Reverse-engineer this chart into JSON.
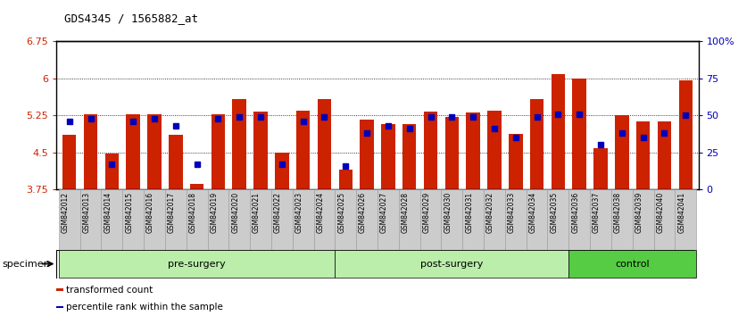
{
  "title": "GDS4345 / 1565882_at",
  "samples": [
    "GSM842012",
    "GSM842013",
    "GSM842014",
    "GSM842015",
    "GSM842016",
    "GSM842017",
    "GSM842018",
    "GSM842019",
    "GSM842020",
    "GSM842021",
    "GSM842022",
    "GSM842023",
    "GSM842024",
    "GSM842025",
    "GSM842026",
    "GSM842027",
    "GSM842028",
    "GSM842029",
    "GSM842030",
    "GSM842031",
    "GSM842032",
    "GSM842033",
    "GSM842034",
    "GSM842035",
    "GSM842036",
    "GSM842037",
    "GSM842038",
    "GSM842039",
    "GSM842040",
    "GSM842041"
  ],
  "red_values": [
    4.85,
    5.28,
    4.47,
    5.28,
    5.28,
    4.85,
    3.87,
    5.28,
    5.57,
    5.32,
    4.5,
    5.35,
    5.57,
    4.15,
    5.17,
    5.08,
    5.08,
    5.32,
    5.22,
    5.3,
    5.35,
    4.87,
    5.58,
    6.08,
    6.0,
    4.58,
    5.25,
    5.12,
    5.12,
    5.95
  ],
  "blue_pct": [
    46,
    48,
    17,
    46,
    48,
    43,
    17,
    48,
    49,
    49,
    17,
    46,
    49,
    16,
    38,
    43,
    41,
    49,
    49,
    49,
    41,
    35,
    49,
    51,
    51,
    30,
    38,
    35,
    38,
    50
  ],
  "ylim_left": [
    3.75,
    6.75
  ],
  "ylim_right": [
    0,
    100
  ],
  "yticks_left": [
    3.75,
    4.5,
    5.25,
    6.0,
    6.75
  ],
  "ytick_labels_left": [
    "3.75",
    "4.5",
    "5.25",
    "6",
    "6.75"
  ],
  "ytick_labels_right": [
    "0",
    "25",
    "50",
    "75",
    "100%"
  ],
  "yticks_right_vals": [
    0,
    25,
    50,
    75,
    100
  ],
  "bar_color": "#CC2200",
  "dot_color": "#0000BB",
  "bar_width": 0.65,
  "base_value": 3.75,
  "grp_defs": [
    {
      "label": "pre-surgery",
      "start": 0,
      "end": 12,
      "color": "#BBEEAA"
    },
    {
      "label": "post-surgery",
      "start": 13,
      "end": 23,
      "color": "#BBEEAA"
    },
    {
      "label": "control",
      "start": 24,
      "end": 29,
      "color": "#55CC44"
    }
  ],
  "specimen_label": "specimen",
  "legend_items": [
    {
      "label": "transformed count",
      "color": "#CC2200"
    },
    {
      "label": "percentile rank within the sample",
      "color": "#0000BB"
    }
  ],
  "bg_color": "#FFFFFF",
  "tick_box_color": "#CCCCCC",
  "tick_box_edge": "#999999"
}
